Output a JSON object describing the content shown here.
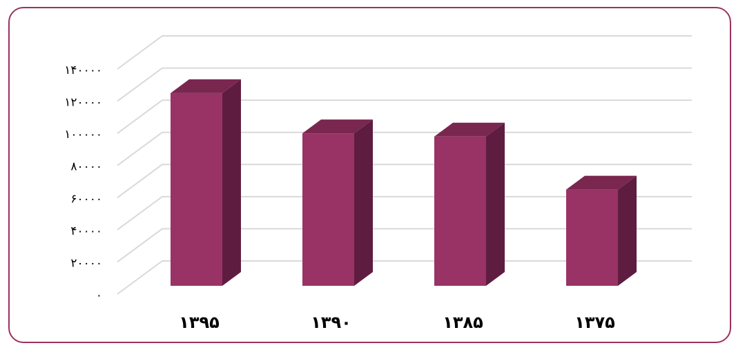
{
  "chart_data": {
    "type": "bar",
    "categories": [
      "۱۳۹۵",
      "۱۳۹۰",
      "۱۳۸۵",
      "۱۳۷۵"
    ],
    "values": [
      125000,
      100000,
      98000,
      65000
    ],
    "ylim": [
      0,
      140000
    ],
    "yticks": [
      0,
      20000,
      40000,
      60000,
      80000,
      100000,
      120000,
      140000
    ],
    "ytick_labels": [
      "۰",
      "۲۰۰۰۰",
      "۴۰۰۰۰",
      "۶۰۰۰۰",
      "۸۰۰۰۰",
      "۱۰۰۰۰۰",
      "۱۲۰۰۰۰",
      "۱۴۰۰۰۰"
    ],
    "grid": true,
    "legend": "none",
    "bar_colors": {
      "front": "#993366",
      "side": "#5e1d40",
      "top": "#7a2750"
    },
    "title": "",
    "xlabel": "",
    "ylabel": ""
  }
}
